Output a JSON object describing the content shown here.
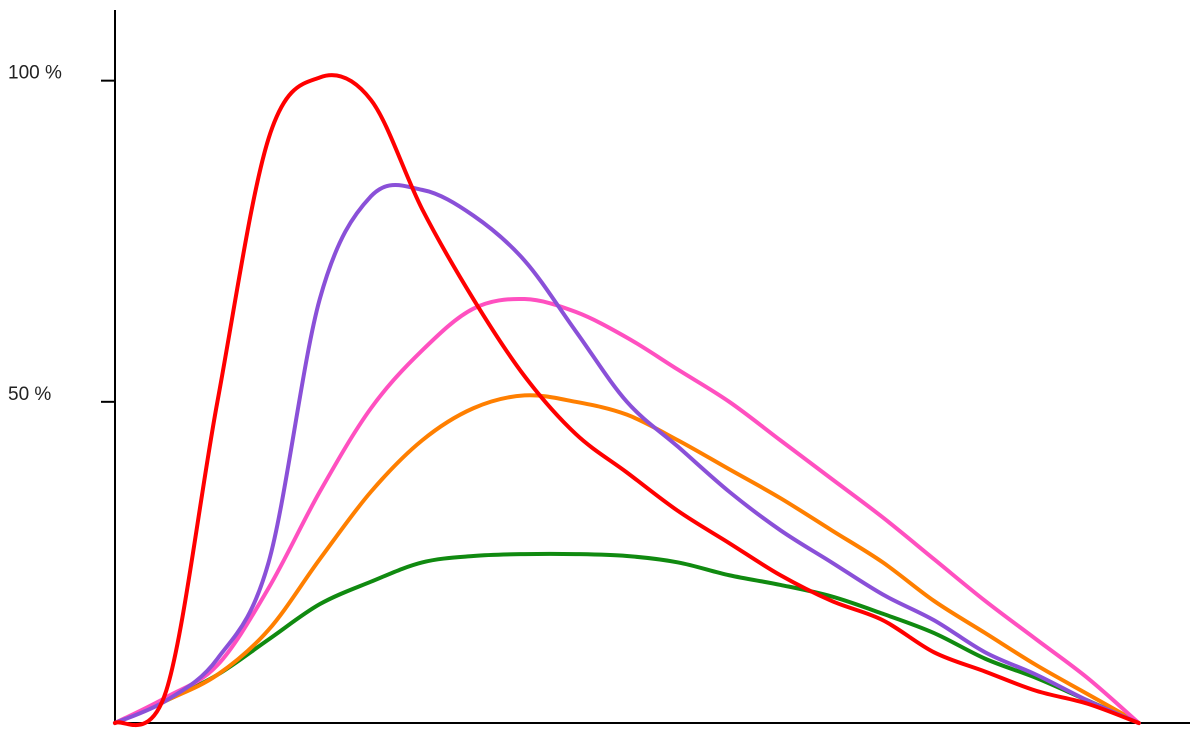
{
  "chart_data": {
    "type": "line",
    "x": [
      0,
      5,
      10,
      15,
      20,
      25,
      30,
      35,
      40,
      45,
      50,
      55,
      60,
      65,
      70,
      75,
      80,
      85,
      90,
      95,
      100
    ],
    "xlim": [
      0,
      105
    ],
    "ylim": [
      0,
      111
    ],
    "yticks": [
      {
        "value": 50,
        "label": "50 %"
      },
      {
        "value": 100,
        "label": "100 %"
      }
    ],
    "grid": false,
    "series": [
      {
        "color": "#108a10",
        "values": [
          0,
          3.5,
          7.5,
          13,
          18.5,
          22,
          25,
          26,
          26.3,
          26.3,
          26,
          25,
          23,
          21.5,
          19.7,
          17,
          14,
          10,
          7,
          3.5,
          0
        ]
      },
      {
        "color": "#ff7f00",
        "values": [
          0,
          3.5,
          7.5,
          14.5,
          25.5,
          36,
          44,
          49,
          51,
          50,
          48,
          44,
          39.5,
          35,
          30,
          25,
          19,
          14,
          9,
          4.5,
          0
        ]
      },
      {
        "color": "#ff50c0",
        "values": [
          0,
          4,
          9,
          21,
          36,
          49,
          58,
          64.5,
          66,
          64,
          60,
          55,
          50,
          44,
          38,
          32,
          25.5,
          19,
          13,
          7,
          0
        ]
      },
      {
        "color": "#8a50d8",
        "values": [
          0,
          3.5,
          10,
          25,
          66,
          82,
          83,
          79,
          72,
          61,
          50,
          43,
          36,
          30,
          25,
          20,
          16,
          11,
          7.5,
          3.5,
          0
        ]
      },
      {
        "color": "#ff0000",
        "values": [
          0,
          5,
          50,
          91,
          100.5,
          97,
          80,
          66,
          54,
          45,
          39,
          33,
          28,
          23,
          19,
          16,
          11,
          8,
          5,
          3,
          0
        ]
      }
    ]
  }
}
